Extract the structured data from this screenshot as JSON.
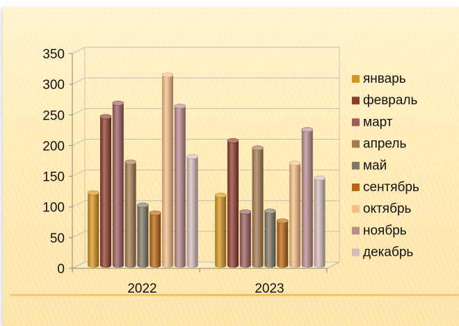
{
  "chart_data": {
    "type": "bar",
    "categories": [
      "2022",
      "2023"
    ],
    "series": [
      {
        "name": "январь",
        "values": [
          118,
          114
        ],
        "color": "#d8951c"
      },
      {
        "name": "февраль",
        "values": [
          242,
          203
        ],
        "color": "#8e3b2a"
      },
      {
        "name": "март",
        "values": [
          264,
          87
        ],
        "color": "#9c5c5e"
      },
      {
        "name": "апрель",
        "values": [
          168,
          191
        ],
        "color": "#a77a4f"
      },
      {
        "name": "май",
        "values": [
          98,
          88
        ],
        "color": "#7f7663"
      },
      {
        "name": "сентябрь",
        "values": [
          85,
          72
        ],
        "color": "#b8650f"
      },
      {
        "name": "октябрь",
        "values": [
          310,
          166
        ],
        "color": "#f5bf86"
      },
      {
        "name": "ноябрь",
        "values": [
          259,
          221
        ],
        "color": "#bb8b8d"
      },
      {
        "name": "декабрь",
        "values": [
          177,
          142
        ],
        "color": "#d6bcbc"
      }
    ],
    "ylim": [
      0,
      350
    ],
    "yticks": [
      0,
      50,
      100,
      150,
      200,
      250,
      300,
      350
    ],
    "title": "",
    "xlabel": "",
    "ylabel": "",
    "grid": true,
    "legend_position": "right"
  }
}
